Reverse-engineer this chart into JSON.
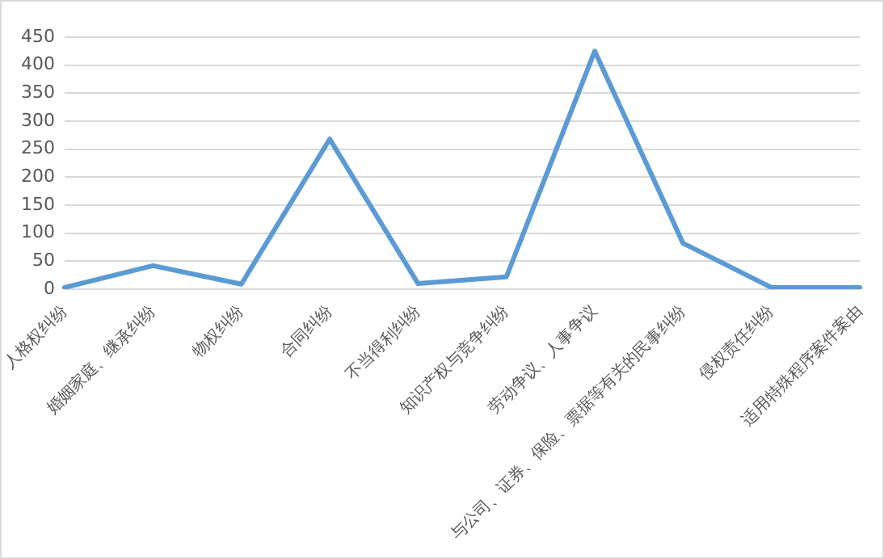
{
  "chart_data": {
    "type": "line",
    "categories": [
      "人格权纠纷",
      "婚姻家庭、继承纠纷",
      "物权纠纷",
      "合同纠纷",
      "不当得利纠纷",
      "知识产权与竞争纠纷",
      "劳动争议、人事争议",
      "与公司、证券、保险、票据等有关的民事纠纷",
      "侵权责任纠纷",
      "适用特殊程序案件案由"
    ],
    "series": [
      {
        "color": "#5b9bd5",
        "values": [
          3,
          42,
          9,
          268,
          10,
          22,
          425,
          82,
          3,
          3
        ]
      }
    ],
    "ylim": [
      0,
      450
    ],
    "yticks": [
      0,
      50,
      100,
      150,
      200,
      250,
      300,
      350,
      400,
      450
    ],
    "grid": "y",
    "legend": false,
    "marker": "none",
    "line_style": "solid"
  }
}
